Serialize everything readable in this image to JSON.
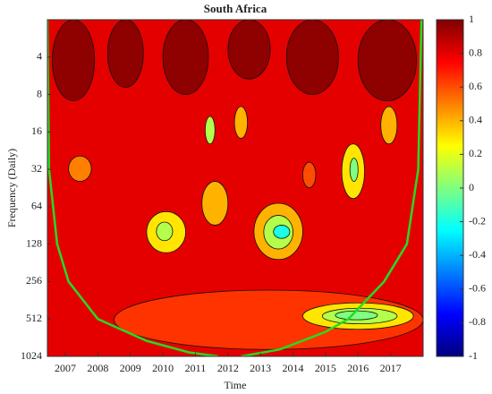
{
  "chart_data": {
    "type": "heatmap",
    "title": "South Africa",
    "x_label": "Time",
    "y_label": "Frequency (Daily)",
    "xlim": [
      2006.45,
      2018.0
    ],
    "xticks": [
      2007,
      2008,
      2009,
      2010,
      2011,
      2012,
      2013,
      2014,
      2015,
      2016,
      2017
    ],
    "ylim": [
      2,
      1024
    ],
    "yticks": [
      4,
      8,
      16,
      32,
      64,
      128,
      256,
      512,
      1024
    ],
    "yscale": "log",
    "y_inverted": true,
    "colorbar_lim": [
      -1,
      1
    ],
    "colorbar_ticks": [
      1,
      0.8,
      0.6,
      0.4,
      0.2,
      0,
      -0.2,
      -0.4,
      -0.6,
      -0.8,
      -1
    ],
    "background_value": 0.8,
    "regions": [
      {
        "x": [
          2008.5,
          2018.0
        ],
        "y": [
          300,
          900
        ],
        "value": 0.65
      },
      {
        "x": [
          2014.3,
          2017.7
        ],
        "y": [
          380,
          620
        ],
        "value": 0.3
      },
      {
        "x": [
          2014.9,
          2017.2
        ],
        "y": [
          420,
          560
        ],
        "value": 0.1
      },
      {
        "x": [
          2015.3,
          2016.6
        ],
        "y": [
          440,
          520
        ],
        "value": 0
      },
      {
        "x": [
          2009.5,
          2010.7
        ],
        "y": [
          70,
          150
        ],
        "value": 0.3
      },
      {
        "x": [
          2009.8,
          2010.3
        ],
        "y": [
          85,
          120
        ],
        "value": 0.1
      },
      {
        "x": [
          2012.8,
          2014.3
        ],
        "y": [
          60,
          170
        ],
        "value": 0.4
      },
      {
        "x": [
          2013.1,
          2014.0
        ],
        "y": [
          75,
          140
        ],
        "value": 0.1
      },
      {
        "x": [
          2013.4,
          2013.9
        ],
        "y": [
          90,
          115
        ],
        "value": -0.2
      },
      {
        "x": [
          2011.2,
          2012.0
        ],
        "y": [
          40,
          90
        ],
        "value": 0.4
      },
      {
        "x": [
          2015.5,
          2016.2
        ],
        "y": [
          20,
          55
        ],
        "value": 0.3
      },
      {
        "x": [
          2015.75,
          2016.0
        ],
        "y": [
          26,
          40
        ],
        "value": 0
      },
      {
        "x": [
          2007.1,
          2007.8
        ],
        "y": [
          25,
          40
        ],
        "value": 0.5
      },
      {
        "x": [
          2014.3,
          2014.7
        ],
        "y": [
          28,
          45
        ],
        "value": 0.6
      },
      {
        "x": [
          2011.3,
          2011.6
        ],
        "y": [
          12,
          20
        ],
        "value": 0.1
      },
      {
        "x": [
          2012.2,
          2012.6
        ],
        "y": [
          10,
          18
        ],
        "value": 0.4
      },
      {
        "x": [
          2016.7,
          2017.2
        ],
        "y": [
          10,
          20
        ],
        "value": 0.4
      },
      {
        "x": [
          2006.6,
          2007.9
        ],
        "y": [
          2,
          9
        ],
        "value": 0.97
      },
      {
        "x": [
          2008.3,
          2009.4
        ],
        "y": [
          2,
          7
        ],
        "value": 0.97
      },
      {
        "x": [
          2010.0,
          2011.4
        ],
        "y": [
          2,
          8
        ],
        "value": 0.97
      },
      {
        "x": [
          2012.0,
          2013.3
        ],
        "y": [
          2,
          6
        ],
        "value": 0.97
      },
      {
        "x": [
          2013.8,
          2015.4
        ],
        "y": [
          2,
          8
        ],
        "value": 0.97
      },
      {
        "x": [
          2016.0,
          2017.8
        ],
        "y": [
          2,
          9
        ],
        "value": 0.97
      }
    ],
    "cone_of_influence": [
      {
        "color": "#22dd22",
        "x": [
          2006.45,
          2006.5,
          2006.75,
          2007.1,
          2008.0,
          2009.5,
          2010.8,
          2011.7
        ],
        "y": [
          2,
          32,
          128,
          256,
          512,
          768,
          950,
          1024
        ]
      },
      {
        "color": "#22dd22",
        "x": [
          2012.4,
          2013.6,
          2015.0,
          2015.7,
          2016.8,
          2017.5,
          2017.85,
          2017.95
        ],
        "y": [
          1024,
          900,
          650,
          512,
          256,
          128,
          32,
          2
        ]
      }
    ]
  }
}
